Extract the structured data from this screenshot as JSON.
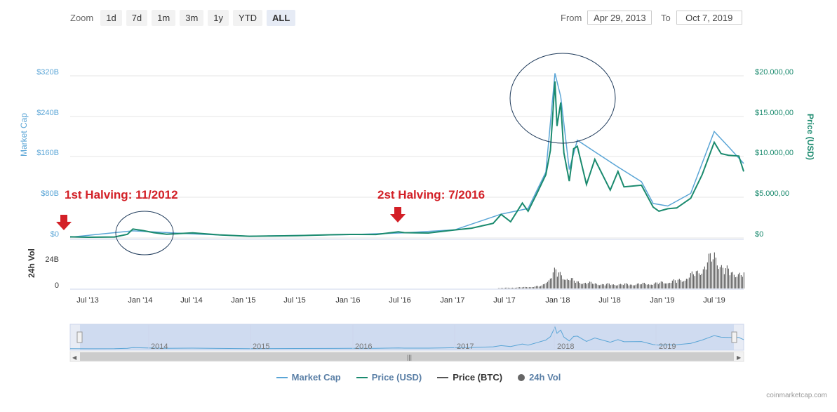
{
  "zoom": {
    "label": "Zoom",
    "buttons": [
      "1d",
      "7d",
      "1m",
      "3m",
      "1y",
      "YTD",
      "ALL"
    ],
    "active": "ALL"
  },
  "range": {
    "from_label": "From",
    "from_value": "Apr 29, 2013",
    "to_label": "To",
    "to_value": "Oct 7, 2019"
  },
  "legend": {
    "items": [
      {
        "label": "Market Cap",
        "color": "#5aa5d6",
        "shape": "line"
      },
      {
        "label": "Price (USD)",
        "color": "#1a8a6e",
        "shape": "line"
      },
      {
        "label": "Price (BTC)",
        "color": "#555555",
        "shape": "line"
      },
      {
        "label": "24h Vol",
        "color": "#666666",
        "shape": "dot"
      }
    ]
  },
  "credit": "coinmarketcap.com",
  "annotations": {
    "halving1": "1st Halving: 11/2012",
    "halving2": "2st Halving: 7/2016"
  },
  "chart_data": {
    "type": "line",
    "axes": {
      "y_left_label": "Market Cap",
      "y_left_ticks": [
        "$0",
        "$80B",
        "$160B",
        "$240B",
        "$320B"
      ],
      "y_right_label": "Price (USD)",
      "y_right_ticks": [
        "$0",
        "$5.000,00",
        "$10.000,00",
        "$15.000,00",
        "$20.000,00"
      ],
      "y_right_range": [
        0,
        20000
      ],
      "vol_label": "24h Vol",
      "vol_ticks": [
        "0",
        "24B"
      ],
      "x_ticks": [
        "Jul '13",
        "Jan '14",
        "Jul '14",
        "Jan '15",
        "Jul '15",
        "Jan '16",
        "Jul '16",
        "Jan '17",
        "Jul '17",
        "Jan '18",
        "Jul '18",
        "Jan '19",
        "Jul '19"
      ]
    },
    "x_range": [
      "2013-04-29",
      "2019-10-07"
    ],
    "series": [
      {
        "name": "Price (USD)",
        "x": [
          "2013-04-29",
          "2013-07-01",
          "2013-10-01",
          "2013-11-15",
          "2013-12-04",
          "2014-01-10",
          "2014-02-15",
          "2014-04-01",
          "2014-07-01",
          "2014-10-01",
          "2015-01-15",
          "2015-04-01",
          "2015-07-01",
          "2015-11-05",
          "2016-01-01",
          "2016-04-01",
          "2016-06-18",
          "2016-07-09",
          "2016-10-01",
          "2017-01-01",
          "2017-03-01",
          "2017-05-15",
          "2017-06-12",
          "2017-07-15",
          "2017-08-25",
          "2017-09-14",
          "2017-10-15",
          "2017-11-15",
          "2017-12-01",
          "2017-12-17",
          "2017-12-24",
          "2018-01-06",
          "2018-01-17",
          "2018-02-05",
          "2018-02-20",
          "2018-03-05",
          "2018-04-06",
          "2018-05-05",
          "2018-06-28",
          "2018-07-25",
          "2018-08-15",
          "2018-10-15",
          "2018-11-25",
          "2018-12-15",
          "2019-01-15",
          "2019-02-15",
          "2019-04-05",
          "2019-05-15",
          "2019-06-26",
          "2019-07-20",
          "2019-08-15",
          "2019-09-20",
          "2019-10-07"
        ],
        "y": [
          140,
          90,
          120,
          450,
          1100,
          900,
          650,
          450,
          620,
          380,
          210,
          240,
          290,
          400,
          430,
          420,
          750,
          650,
          610,
          990,
          1200,
          1800,
          2900,
          2000,
          4300,
          3300,
          5500,
          7800,
          10800,
          19300,
          13800,
          16700,
          10500,
          7000,
          11000,
          11300,
          6600,
          9700,
          5900,
          8200,
          6300,
          6500,
          3800,
          3300,
          3600,
          3700,
          4900,
          7800,
          11800,
          10400,
          10200,
          10100,
          8200
        ]
      },
      {
        "name": "Market Cap",
        "x": [
          "2013-04-29",
          "2013-12-04",
          "2014-07-01",
          "2015-01-15",
          "2016-01-01",
          "2016-07-09",
          "2017-01-01",
          "2017-06-12",
          "2017-09-14",
          "2017-11-15",
          "2017-12-17",
          "2018-01-06",
          "2018-02-05",
          "2018-03-05",
          "2018-05-05",
          "2018-07-25",
          "2018-10-15",
          "2018-11-25",
          "2019-01-15",
          "2019-04-05",
          "2019-06-26",
          "2019-08-15",
          "2019-10-07"
        ],
        "y": [
          1.5,
          14,
          8,
          3.5,
          6.5,
          10,
          16,
          47,
          58,
          130,
          325,
          279,
          135,
          193,
          170,
          140,
          111,
          68,
          63,
          88,
          210,
          180,
          147
        ]
      },
      {
        "name": "24h Vol",
        "x": [
          "2017-06-01",
          "2017-09-01",
          "2017-11-01",
          "2017-12-17",
          "2018-01-10",
          "2018-03-01",
          "2018-06-01",
          "2018-09-01",
          "2018-12-01",
          "2019-03-01",
          "2019-05-01",
          "2019-06-26",
          "2019-08-01",
          "2019-10-07"
        ],
        "y": [
          0.5,
          1.5,
          3,
          21,
          15,
          8,
          5,
          5,
          6,
          10,
          20,
          40,
          22,
          16
        ]
      }
    ],
    "navigator_labels": [
      "2014",
      "2015",
      "2016",
      "2017",
      "2018",
      "2019"
    ],
    "grid": true,
    "legend_position": "bottom-center"
  }
}
